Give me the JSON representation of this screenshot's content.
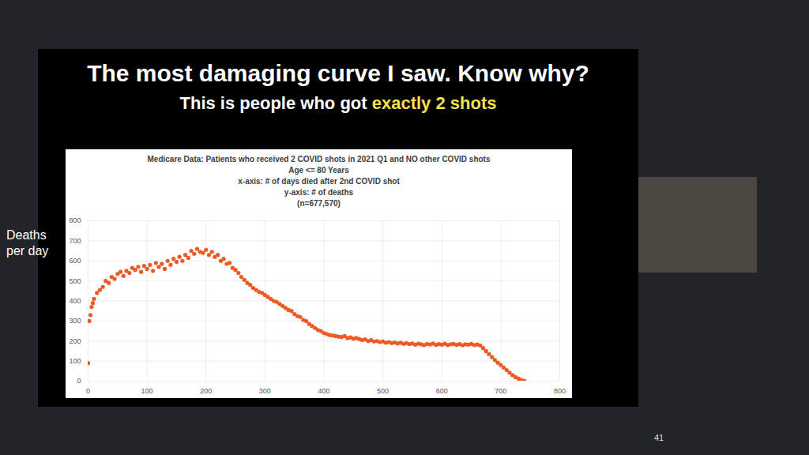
{
  "slide": {
    "title": "The most damaging curve I saw. Know why?",
    "subtitle": "This is people who got exactly 2 shots",
    "highlight": "exactly 2 shots",
    "page": "41"
  },
  "chart_data": {
    "type": "scatter",
    "title": "Medicare Data: Patients who received 2 COVID shots in 2021 Q1 and NO other COVID shots",
    "subtitle": [
      "Age <= 80 Years",
      "x-axis: # of days died after 2nd COVID shot",
      "y-axis: # of deaths",
      "(n=677,570)"
    ],
    "ylabel": "Deaths per day",
    "x": [
      0,
      2,
      4,
      6,
      8,
      10,
      15,
      20,
      25,
      30,
      35,
      40,
      45,
      50,
      55,
      60,
      65,
      70,
      75,
      80,
      85,
      90,
      95,
      100,
      105,
      110,
      115,
      120,
      125,
      130,
      135,
      140,
      145,
      150,
      155,
      160,
      165,
      170,
      175,
      180,
      185,
      190,
      195,
      200,
      205,
      210,
      215,
      220,
      225,
      230,
      235,
      240,
      245,
      250,
      255,
      260,
      265,
      270,
      275,
      280,
      285,
      290,
      295,
      300,
      305,
      310,
      315,
      320,
      325,
      330,
      335,
      340,
      345,
      350,
      355,
      360,
      365,
      370,
      375,
      380,
      385,
      390,
      395,
      400,
      405,
      410,
      415,
      420,
      425,
      430,
      435,
      440,
      445,
      450,
      455,
      460,
      465,
      470,
      475,
      480,
      485,
      490,
      495,
      500,
      505,
      510,
      515,
      520,
      525,
      530,
      535,
      540,
      545,
      550,
      555,
      560,
      565,
      570,
      575,
      580,
      585,
      590,
      595,
      600,
      605,
      610,
      615,
      620,
      625,
      630,
      635,
      640,
      645,
      650,
      655,
      660,
      665,
      670,
      675,
      680,
      685,
      690,
      695,
      700,
      705,
      710,
      715,
      720,
      725,
      730,
      735,
      740
    ],
    "values": [
      90,
      300,
      330,
      370,
      390,
      410,
      440,
      455,
      470,
      500,
      490,
      520,
      510,
      535,
      545,
      525,
      550,
      540,
      565,
      555,
      570,
      545,
      575,
      560,
      580,
      550,
      590,
      570,
      585,
      560,
      600,
      580,
      610,
      595,
      620,
      600,
      630,
      615,
      650,
      635,
      660,
      645,
      640,
      655,
      630,
      645,
      620,
      630,
      600,
      610,
      585,
      590,
      565,
      555,
      540,
      520,
      505,
      490,
      480,
      465,
      455,
      445,
      440,
      430,
      420,
      410,
      400,
      395,
      385,
      375,
      365,
      355,
      350,
      335,
      325,
      320,
      305,
      300,
      285,
      275,
      265,
      255,
      250,
      240,
      235,
      230,
      228,
      225,
      222,
      220,
      225,
      215,
      218,
      212,
      215,
      210,
      205,
      208,
      200,
      205,
      198,
      200,
      195,
      198,
      192,
      195,
      190,
      193,
      188,
      192,
      186,
      190,
      185,
      188,
      182,
      187,
      184,
      180,
      186,
      183,
      188,
      181,
      185,
      182,
      187,
      180,
      184,
      186,
      181,
      185,
      179,
      184,
      182,
      186,
      180,
      183,
      178,
      165,
      150,
      135,
      120,
      105,
      92,
      80,
      68,
      55,
      42,
      30,
      20,
      12,
      6,
      2
    ],
    "color": "#ef5a24",
    "marker": "circle",
    "xlim": [
      0,
      800
    ],
    "xticks": [
      0,
      100,
      200,
      300,
      400,
      500,
      600,
      700,
      800
    ],
    "ylim": [
      0,
      800
    ],
    "yticks": [
      0,
      100,
      200,
      300,
      400,
      500,
      600,
      700,
      800
    ],
    "grid": true
  }
}
